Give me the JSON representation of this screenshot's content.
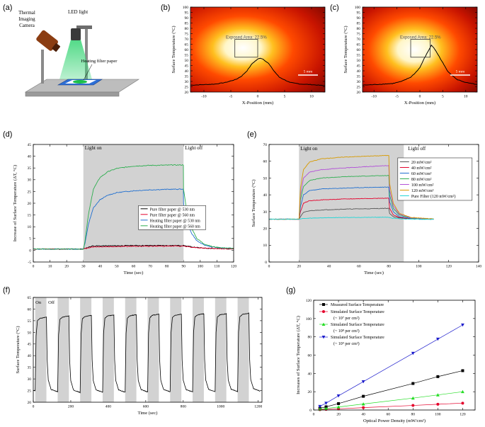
{
  "panel_labels": {
    "a": "(a)",
    "b": "(b)",
    "c": "(c)",
    "d": "(d)",
    "e": "(e)",
    "f": "(f)",
    "g": "(g)"
  },
  "setup": {
    "camera_label_1": "Thermal",
    "camera_label_2": "Imaging",
    "camera_label_3": "Camera",
    "led_label": "LED light",
    "paper_label": "Heating filter paper"
  },
  "colors": {
    "black": "#000000",
    "red": "#e4002b",
    "blue": "#1f6fd0",
    "green": "#2dae4f",
    "grey": "#d2d2d2",
    "navy": "#1c1ccc",
    "lime": "#22dd22",
    "orange": "#d79a00",
    "purple": "#b24fd8",
    "cyan": "#1fd6d6",
    "darkgrey": "#555555"
  },
  "chart_data": [
    {
      "id": "b",
      "type": "line",
      "xlabel": "X-Position (mm)",
      "ylabel": "Surface Temperature (°C)",
      "xlim": [
        -12.5,
        12.5
      ],
      "ylim": [
        20,
        100
      ],
      "xticks": [
        -10,
        -5,
        0,
        5,
        10
      ],
      "yticks": [
        20,
        25,
        30,
        35,
        40,
        45,
        50,
        55,
        60,
        65,
        70,
        75,
        80,
        85,
        90,
        95,
        100
      ],
      "annotation": "Exposed Area: 22.5%",
      "scale_bar": "5 mm",
      "series": [
        {
          "x": [
            -12.5,
            -10,
            -8,
            -6,
            -4,
            -3,
            -2,
            -1,
            0,
            0.5,
            1,
            2,
            3,
            4,
            6,
            8,
            10,
            12.5
          ],
          "y": [
            26.5,
            27,
            27.5,
            29,
            32,
            35,
            40,
            47,
            51,
            52,
            51,
            47,
            40,
            34,
            29,
            27.5,
            27,
            26
          ]
        }
      ]
    },
    {
      "id": "c",
      "type": "line",
      "xlabel": "X-Position (mm)",
      "ylabel": "Surface Temperature (°C)",
      "xlim": [
        -12.5,
        12.5
      ],
      "ylim": [
        20,
        100
      ],
      "xticks": [
        -10,
        -5,
        0,
        5,
        10
      ],
      "yticks": [
        20,
        25,
        30,
        35,
        40,
        45,
        50,
        55,
        60,
        65,
        70,
        75,
        80,
        85,
        90,
        95,
        100
      ],
      "annotation": "Exposed Area: 22.5%",
      "scale_bar": "5 mm",
      "series": [
        {
          "x": [
            -12.5,
            -10,
            -8,
            -6,
            -4,
            -2,
            -1,
            0,
            1,
            2,
            2.5,
            3,
            4,
            6,
            8,
            10,
            12.5
          ],
          "y": [
            26.5,
            27,
            27.5,
            28,
            30,
            34,
            38,
            43,
            52,
            60,
            64,
            62,
            55,
            40,
            32,
            29,
            27
          ]
        }
      ]
    },
    {
      "id": "d",
      "type": "line",
      "xlabel": "Time (sec)",
      "ylabel": "Increase of Surface Temperature (ΔT, °C)",
      "xlim": [
        0,
        120
      ],
      "ylim": [
        -5,
        45
      ],
      "xticks": [
        0,
        10,
        20,
        30,
        40,
        50,
        60,
        70,
        80,
        90,
        100,
        110,
        120
      ],
      "yticks": [
        -5,
        0,
        5,
        10,
        15,
        20,
        25,
        30,
        35,
        40,
        45
      ],
      "shade": [
        30,
        90
      ],
      "light_on": "Light on",
      "light_off": "Light off",
      "series": [
        {
          "name": "Pure filter paper @ 530 nm",
          "color": "#000000",
          "x": [
            0,
            30,
            35,
            60,
            90,
            95,
            100,
            110,
            120
          ],
          "y": [
            0.5,
            0.5,
            1.8,
            2,
            2,
            1.4,
            1,
            0.7,
            0.6
          ]
        },
        {
          "name": "Pure filter paper @ 560 nm",
          "color": "#e4002b",
          "x": [
            0,
            30,
            35,
            60,
            90,
            95,
            100,
            110,
            120
          ],
          "y": [
            0.5,
            0.5,
            1.4,
            1.7,
            1.8,
            1.3,
            1,
            0.7,
            0.6
          ]
        },
        {
          "name": "Heating filter paper @ 530 nm",
          "color": "#1f6fd0",
          "x": [
            0,
            30,
            31,
            33,
            36,
            40,
            45,
            50,
            60,
            70,
            80,
            89.9,
            90,
            92,
            95,
            98,
            102,
            107,
            112,
            120
          ],
          "y": [
            0.5,
            0.5,
            3,
            11,
            18,
            21.5,
            23.5,
            24.5,
            25.3,
            25.7,
            25.9,
            26,
            20,
            12,
            7,
            4,
            2.3,
            1.4,
            1,
            0.8
          ]
        },
        {
          "name": "Heating filter paper @ 560 nm",
          "color": "#2dae4f",
          "x": [
            0,
            30,
            31,
            33,
            36,
            40,
            45,
            50,
            60,
            70,
            80,
            89.9,
            90,
            92,
            95,
            98,
            102,
            107,
            112,
            120
          ],
          "y": [
            0.5,
            0.5,
            4,
            15,
            26,
            31,
            33.5,
            34.8,
            35.8,
            36.1,
            36.2,
            36.3,
            26,
            16,
            9,
            5,
            2.8,
            1.6,
            1.1,
            0.8
          ]
        }
      ]
    },
    {
      "id": "e",
      "type": "line",
      "xlabel": "Time (sec)",
      "ylabel": "Surface Temperature (°C)",
      "xlim": [
        0,
        140
      ],
      "ylim": [
        0,
        70
      ],
      "xticks": [
        0,
        20,
        40,
        60,
        80,
        100,
        120,
        140
      ],
      "yticks": [
        0,
        10,
        20,
        30,
        40,
        50,
        60,
        70
      ],
      "shade": [
        20,
        90
      ],
      "light_on": "Light on",
      "light_off": "Light off",
      "series": [
        {
          "name": "20 mW/cm²",
          "color": "#555555",
          "x": [
            0,
            20,
            21,
            23,
            27,
            35,
            50,
            65,
            80,
            80.5,
            83,
            87,
            95,
            110
          ],
          "y": [
            25.5,
            25.5,
            27,
            29.5,
            30.5,
            31,
            31.5,
            31.7,
            32,
            29,
            27,
            26.2,
            25.8,
            25.5
          ]
        },
        {
          "name": "40 mW/cm²",
          "color": "#e4002b",
          "x": [
            0,
            20,
            21,
            23,
            27,
            35,
            50,
            65,
            80,
            80.5,
            83,
            87,
            95,
            110
          ],
          "y": [
            25.5,
            25.5,
            30,
            35,
            36.5,
            37,
            37.5,
            37.8,
            38,
            32,
            28,
            26.5,
            25.9,
            25.5
          ]
        },
        {
          "name": "60 mW/cm²",
          "color": "#1f6fd0",
          "x": [
            0,
            20,
            21,
            23,
            27,
            35,
            50,
            65,
            80,
            80.5,
            83,
            87,
            95,
            110
          ],
          "y": [
            25.5,
            25.5,
            33,
            40,
            42.5,
            43.5,
            44,
            44.4,
            44.6,
            36,
            30,
            27,
            26,
            25.5
          ]
        },
        {
          "name": "80 mW/cm²",
          "color": "#2dae4f",
          "x": [
            0,
            20,
            21,
            23,
            27,
            35,
            50,
            65,
            80,
            80.5,
            83,
            87,
            95,
            110
          ],
          "y": [
            25.5,
            25.5,
            37,
            45,
            48.5,
            50,
            50.8,
            51.2,
            51.5,
            40,
            32,
            28,
            26.2,
            25.6
          ]
        },
        {
          "name": "100 mW/cm²",
          "color": "#b24fd8",
          "x": [
            0,
            20,
            21,
            23,
            27,
            35,
            50,
            65,
            80,
            80.5,
            83,
            87,
            95,
            110
          ],
          "y": [
            25.5,
            25.5,
            40,
            50,
            53.5,
            55,
            56,
            56.8,
            57.5,
            43,
            33.5,
            28.5,
            26.3,
            25.6
          ]
        },
        {
          "name": "120 mW/cm²",
          "color": "#d79a00",
          "x": [
            0,
            20,
            21,
            23,
            27,
            35,
            50,
            65,
            80,
            80.5,
            83,
            87,
            95,
            110
          ],
          "y": [
            25.5,
            25.5,
            44,
            55,
            59.5,
            61.5,
            62.5,
            63,
            63.5,
            47,
            35,
            29,
            26.5,
            25.7
          ]
        },
        {
          "name": "Pure Filter (120 mW/cm²)",
          "color": "#1fd6d6",
          "x": [
            0,
            20,
            22,
            26,
            35,
            50,
            80,
            82,
            86,
            95,
            110
          ],
          "y": [
            25.5,
            25.5,
            25.8,
            26,
            26.3,
            26.5,
            26.7,
            26.1,
            25.7,
            25.5,
            25.4
          ]
        }
      ]
    },
    {
      "id": "f",
      "type": "line",
      "xlabel": "Time (sec)",
      "ylabel": "Surface Temperature (°C)",
      "xlim": [
        0,
        1220
      ],
      "ylim": [
        20,
        65
      ],
      "xticks": [
        0,
        200,
        400,
        600,
        800,
        1000,
        1200
      ],
      "yticks": [
        20,
        25,
        30,
        35,
        40,
        45,
        50,
        55,
        60,
        65
      ],
      "on_label": "On",
      "off_label": "Off",
      "on_periods": [
        [
          10,
          70
        ],
        [
          130,
          190
        ],
        [
          250,
          310
        ],
        [
          370,
          430
        ],
        [
          490,
          550
        ],
        [
          610,
          670
        ],
        [
          730,
          790
        ],
        [
          850,
          910
        ],
        [
          970,
          1030
        ],
        [
          1090,
          1150
        ]
      ],
      "on_level": [
        56.5,
        57,
        57.3,
        57.5,
        57.6,
        57.8,
        57.8,
        58,
        58,
        58.2
      ],
      "off_level": [
        24.5,
        24.2,
        24.3,
        24.3,
        24.4,
        24.5,
        24.4,
        24.5,
        24.6,
        24.8
      ]
    },
    {
      "id": "g",
      "type": "scatter",
      "xlabel": "Optical Power Density (mW/cm²)",
      "ylabel": "Increases of Surface Temperature (ΔT, °C)",
      "xlim": [
        0,
        130
      ],
      "ylim": [
        0,
        120
      ],
      "xticks": [
        0,
        20,
        40,
        60,
        80,
        100,
        120
      ],
      "yticks": [
        0,
        20,
        40,
        60,
        80,
        100,
        120
      ],
      "series": [
        {
          "name": "Measured Surface Temperature",
          "sub": "",
          "color": "#000000",
          "marker": "square",
          "x": [
            5,
            10,
            20,
            40,
            80,
            100,
            120
          ],
          "y": [
            2,
            3.5,
            7,
            15,
            29,
            36.5,
            43
          ]
        },
        {
          "name": "Simulated Surface Temperature",
          "sub": "(~ 10⁷ per cm²)",
          "color": "#e4002b",
          "marker": "circle",
          "x": [
            5,
            10,
            20,
            40,
            80,
            100,
            120
          ],
          "y": [
            0.4,
            0.7,
            1.3,
            2.6,
            5,
            6.3,
            7.5
          ]
        },
        {
          "name": "Simulated Surface Temperature",
          "sub": "(~ 10⁸ per cm²)",
          "color": "#22dd22",
          "marker": "triangle",
          "x": [
            5,
            10,
            20,
            40,
            80,
            100,
            120
          ],
          "y": [
            1,
            1.7,
            3.3,
            6.6,
            13,
            16.5,
            20
          ]
        },
        {
          "name": "Simulated Surface Temperature",
          "sub": "(~ 10⁹ per cm²)",
          "color": "#1c1ccc",
          "marker": "triangle-down",
          "x": [
            5,
            10,
            20,
            40,
            80,
            100,
            120
          ],
          "y": [
            4,
            7.5,
            15.5,
            31,
            62,
            77.5,
            93
          ]
        }
      ]
    }
  ]
}
